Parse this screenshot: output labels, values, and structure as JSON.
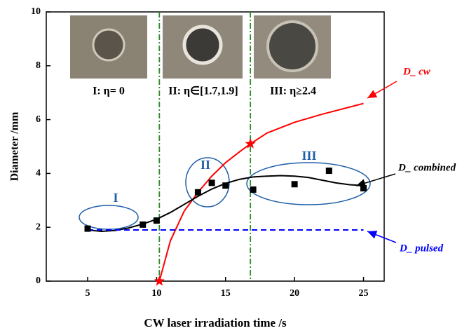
{
  "chart_data": {
    "type": "line",
    "xlabel": "CW laser irradiation time /s",
    "ylabel": "Diameter /mm",
    "xlim": [
      2,
      26.5
    ],
    "ylim": [
      0,
      10
    ],
    "xticks": [
      5,
      10,
      15,
      20,
      25
    ],
    "yticks": [
      0,
      2,
      4,
      6,
      8,
      10
    ],
    "vlines": [
      10.2,
      16.8
    ],
    "vline_color": "#2e8b2e",
    "captions": [
      "I: η= 0",
      "II: η∈[1.7,1.9]",
      "III: η≥2.4"
    ],
    "regions": [
      "I",
      "II",
      "III"
    ],
    "region_color": "#1f5fa8",
    "series": [
      {
        "name": "D_ cw",
        "color": "#ff0000",
        "dashed": false,
        "x": [
          10.2,
          11,
          12,
          13,
          14,
          15,
          16,
          16.8,
          18,
          20,
          22,
          25
        ],
        "values": [
          0,
          1.5,
          2.6,
          3.3,
          3.9,
          4.4,
          4.8,
          5.1,
          5.5,
          5.9,
          6.2,
          6.6
        ]
      },
      {
        "name": "D_ combined",
        "color": "#000000",
        "dashed": false,
        "x": [
          5,
          6,
          7,
          8,
          9,
          10,
          11,
          12,
          13,
          14,
          15,
          16,
          17,
          18,
          19,
          20,
          21,
          22,
          23,
          24,
          25
        ],
        "values": [
          1.9,
          1.85,
          1.88,
          1.98,
          2.12,
          2.3,
          2.55,
          2.85,
          3.15,
          3.42,
          3.63,
          3.78,
          3.87,
          3.9,
          3.92,
          3.9,
          3.85,
          3.75,
          3.65,
          3.58,
          3.55
        ]
      },
      {
        "name": "D_ pulsed",
        "color": "#0000ff",
        "dashed": true,
        "x": [
          5,
          25
        ],
        "values": [
          1.9,
          1.9
        ]
      }
    ],
    "points": {
      "color": "#000000",
      "x": [
        5,
        9,
        10,
        13,
        14,
        15,
        17,
        20,
        22.5,
        25
      ],
      "values": [
        1.95,
        2.1,
        2.25,
        3.3,
        3.65,
        3.55,
        3.4,
        3.6,
        4.1,
        3.45
      ]
    }
  }
}
